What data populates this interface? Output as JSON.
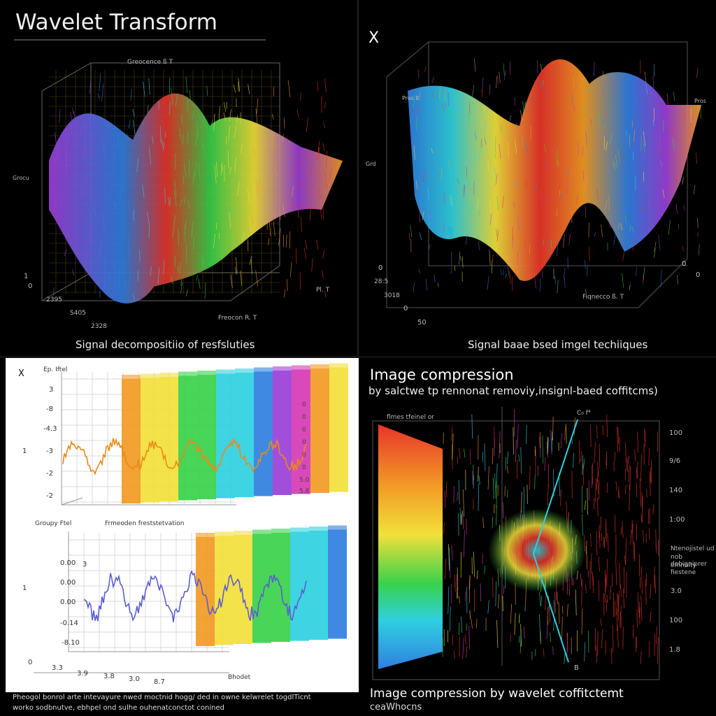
{
  "panel1": {
    "title": "Wavelet Transform",
    "axis_top": "Greocence ß T",
    "axis_left": "Grocu",
    "axis_bottom": "Freocon R. T",
    "axis_right": "Pl.  T",
    "yticks": [
      "1",
      "0"
    ],
    "xticks": [
      "2395",
      "S405",
      "2328"
    ],
    "caption": "Signal decompositiio of resfsluties"
  },
  "panel2": {
    "corner": "X",
    "axis_left": "Grd",
    "axis_top": "Pros ß.",
    "axis_right": "Pros",
    "axis_bottom": "Fiqnecco ß. T",
    "yticks": [
      "0",
      "28:5",
      "3018",
      "0",
      "50"
    ],
    "rticks": [
      "0",
      "0"
    ],
    "caption": "Signal baae bsed imgel techiiques"
  },
  "panel3": {
    "corner": "X",
    "top_label": "Ep. Iftel",
    "top_yticks": [
      "3",
      "-8",
      "-4.3",
      "-3",
      "-2",
      "-2"
    ],
    "top_side": "1",
    "bar_labels_top": [
      "0",
      "0",
      "0",
      "0",
      "0",
      "0",
      "5.0",
      "5.8"
    ],
    "bottom_label": "Groupy Ftel",
    "bottom_title": "Frmeoden freststetvation",
    "bottom_yticks": [
      "3",
      "0.00",
      "0.00",
      "0.00",
      "-0.14",
      "-8.10"
    ],
    "bottom_side": "1",
    "bottom_xticks": [
      "0",
      "3.3",
      "3.9",
      "3.8",
      "3.0",
      "8.7"
    ],
    "bottom_axis": "Bhodet",
    "footer1": "Pheogol bonrol arte intevayure nwed moctnid hogg/ ded in owne kelwrelet togdlTicnt",
    "footer2": "worko sodbnutve, ebhpel ond sulhe ouhenatconctot conined"
  },
  "panel4": {
    "title": "Image compression",
    "subtitle": "by salctwe tp rennonat removiy,insignl-baed coffitcms)",
    "inner_top": "flmes tfeinel or",
    "peak_label": "C₀ f⁴",
    "rticks": [
      "100",
      "9/6",
      "140",
      "1:00",
      "3.0",
      "100",
      "1.8"
    ],
    "side_note1": "Ntenojistel ud",
    "side_note2": "nob dobigniprer",
    "side_note3": "emnoity fiestene",
    "bottom_tick": "B",
    "caption1": "Image compression by wavelet coffitctemt",
    "caption2": "ceaWhocns"
  },
  "colors": {
    "purple": "#9b3fd8",
    "blue": "#2f7fe0",
    "cyan": "#2fd0e0",
    "green": "#38d14a",
    "yellow": "#f2e03a",
    "orange": "#f29a25",
    "red": "#e8342a",
    "magenta": "#d63ab4"
  }
}
